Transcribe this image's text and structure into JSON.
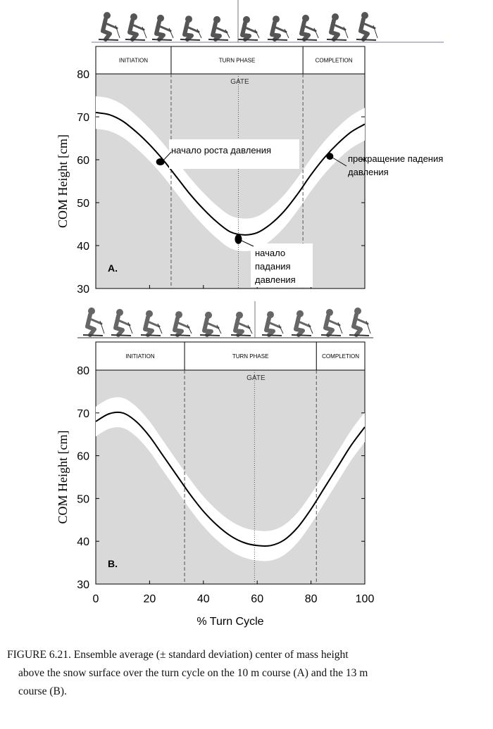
{
  "chart_data": [
    {
      "type": "line",
      "panel_label": "A.",
      "ylabel": "COM Height [cm]",
      "xlabel": "",
      "ylim": [
        30,
        80
      ],
      "xlim": [
        0,
        100
      ],
      "yticks": [
        30,
        40,
        50,
        60,
        70,
        80
      ],
      "phases": [
        "INITIATION",
        "TURN PHASE",
        "COMPLETION"
      ],
      "phase_boundaries": [
        28,
        77
      ],
      "gate_label": "GATE",
      "gate_x": 53,
      "x": [
        0,
        5,
        10,
        15,
        20,
        25,
        30,
        35,
        40,
        45,
        50,
        55,
        60,
        65,
        70,
        75,
        80,
        85,
        90,
        95,
        100
      ],
      "series": [
        {
          "name": "mean",
          "values": [
            71.0,
            70.5,
            69.0,
            66.5,
            63.5,
            60.0,
            56.0,
            52.0,
            48.5,
            45.5,
            43.2,
            42.5,
            43.0,
            45.0,
            48.0,
            52.0,
            56.5,
            60.5,
            63.8,
            66.5,
            68.3
          ]
        },
        {
          "name": "sd_upper",
          "values": [
            74.8,
            74.3,
            72.8,
            70.3,
            67.3,
            63.8,
            59.8,
            55.8,
            52.3,
            49.3,
            47.0,
            46.3,
            46.8,
            48.8,
            51.8,
            55.8,
            60.3,
            64.3,
            67.6,
            70.3,
            72.1
          ]
        },
        {
          "name": "sd_lower",
          "values": [
            67.2,
            66.7,
            65.2,
            62.7,
            59.7,
            56.2,
            52.2,
            48.2,
            44.7,
            41.7,
            39.4,
            38.7,
            39.2,
            41.2,
            44.2,
            48.2,
            52.7,
            56.7,
            60.0,
            62.7,
            64.5
          ]
        }
      ],
      "annotations": [
        {
          "text": "начало роста давления",
          "x": 24,
          "y": 59.5
        },
        {
          "text_lines": [
            "начало",
            "падания",
            "давления"
          ],
          "x": 53,
          "y": 41.5
        },
        {
          "text_lines": [
            "прекращение падения",
            "давления"
          ],
          "x": 87,
          "y": 60.8
        }
      ]
    },
    {
      "type": "line",
      "panel_label": "B.",
      "ylabel": "COM Height [cm]",
      "xlabel": "% Turn Cycle",
      "ylim": [
        30,
        80
      ],
      "xlim": [
        0,
        100
      ],
      "yticks": [
        30,
        40,
        50,
        60,
        70,
        80
      ],
      "xticks": [
        0,
        20,
        40,
        60,
        80,
        100
      ],
      "phases": [
        "INITIATION",
        "TURN PHASE",
        "COMPLETION"
      ],
      "phase_boundaries": [
        33,
        82
      ],
      "gate_label": "GATE",
      "gate_x": 59,
      "x": [
        0,
        5,
        10,
        15,
        20,
        25,
        30,
        35,
        40,
        45,
        50,
        55,
        60,
        65,
        70,
        75,
        80,
        85,
        90,
        95,
        100
      ],
      "series": [
        {
          "name": "mean",
          "values": [
            68.0,
            69.8,
            70.0,
            68.0,
            64.5,
            60.0,
            55.5,
            51.0,
            47.0,
            43.8,
            41.3,
            39.7,
            39.0,
            39.0,
            40.3,
            43.2,
            47.5,
            52.5,
            57.5,
            62.5,
            66.7
          ]
        },
        {
          "name": "sd_upper",
          "values": [
            71.5,
            73.3,
            73.5,
            71.5,
            68.0,
            63.5,
            59.0,
            54.5,
            50.5,
            47.3,
            44.8,
            43.2,
            42.5,
            42.5,
            43.8,
            46.7,
            51.0,
            56.0,
            61.0,
            66.0,
            70.2
          ]
        },
        {
          "name": "sd_lower",
          "values": [
            64.5,
            66.3,
            66.5,
            64.5,
            61.0,
            56.5,
            52.0,
            47.5,
            43.5,
            40.3,
            37.8,
            36.2,
            35.5,
            35.5,
            36.8,
            39.7,
            44.0,
            49.0,
            54.0,
            59.0,
            63.2
          ]
        }
      ]
    }
  ],
  "caption": {
    "line1": "FIGURE 6.21.  Ensemble average (± standard deviation) center of mass height",
    "line2": "above the snow surface over the turn cycle on the 10 m course (A) and the 13 m",
    "line3": "course (B)."
  },
  "colors": {
    "panel_background": "#d9d9d9",
    "sd_band": "#ffffff",
    "mean_line": "#000000",
    "skier": "#555555"
  }
}
